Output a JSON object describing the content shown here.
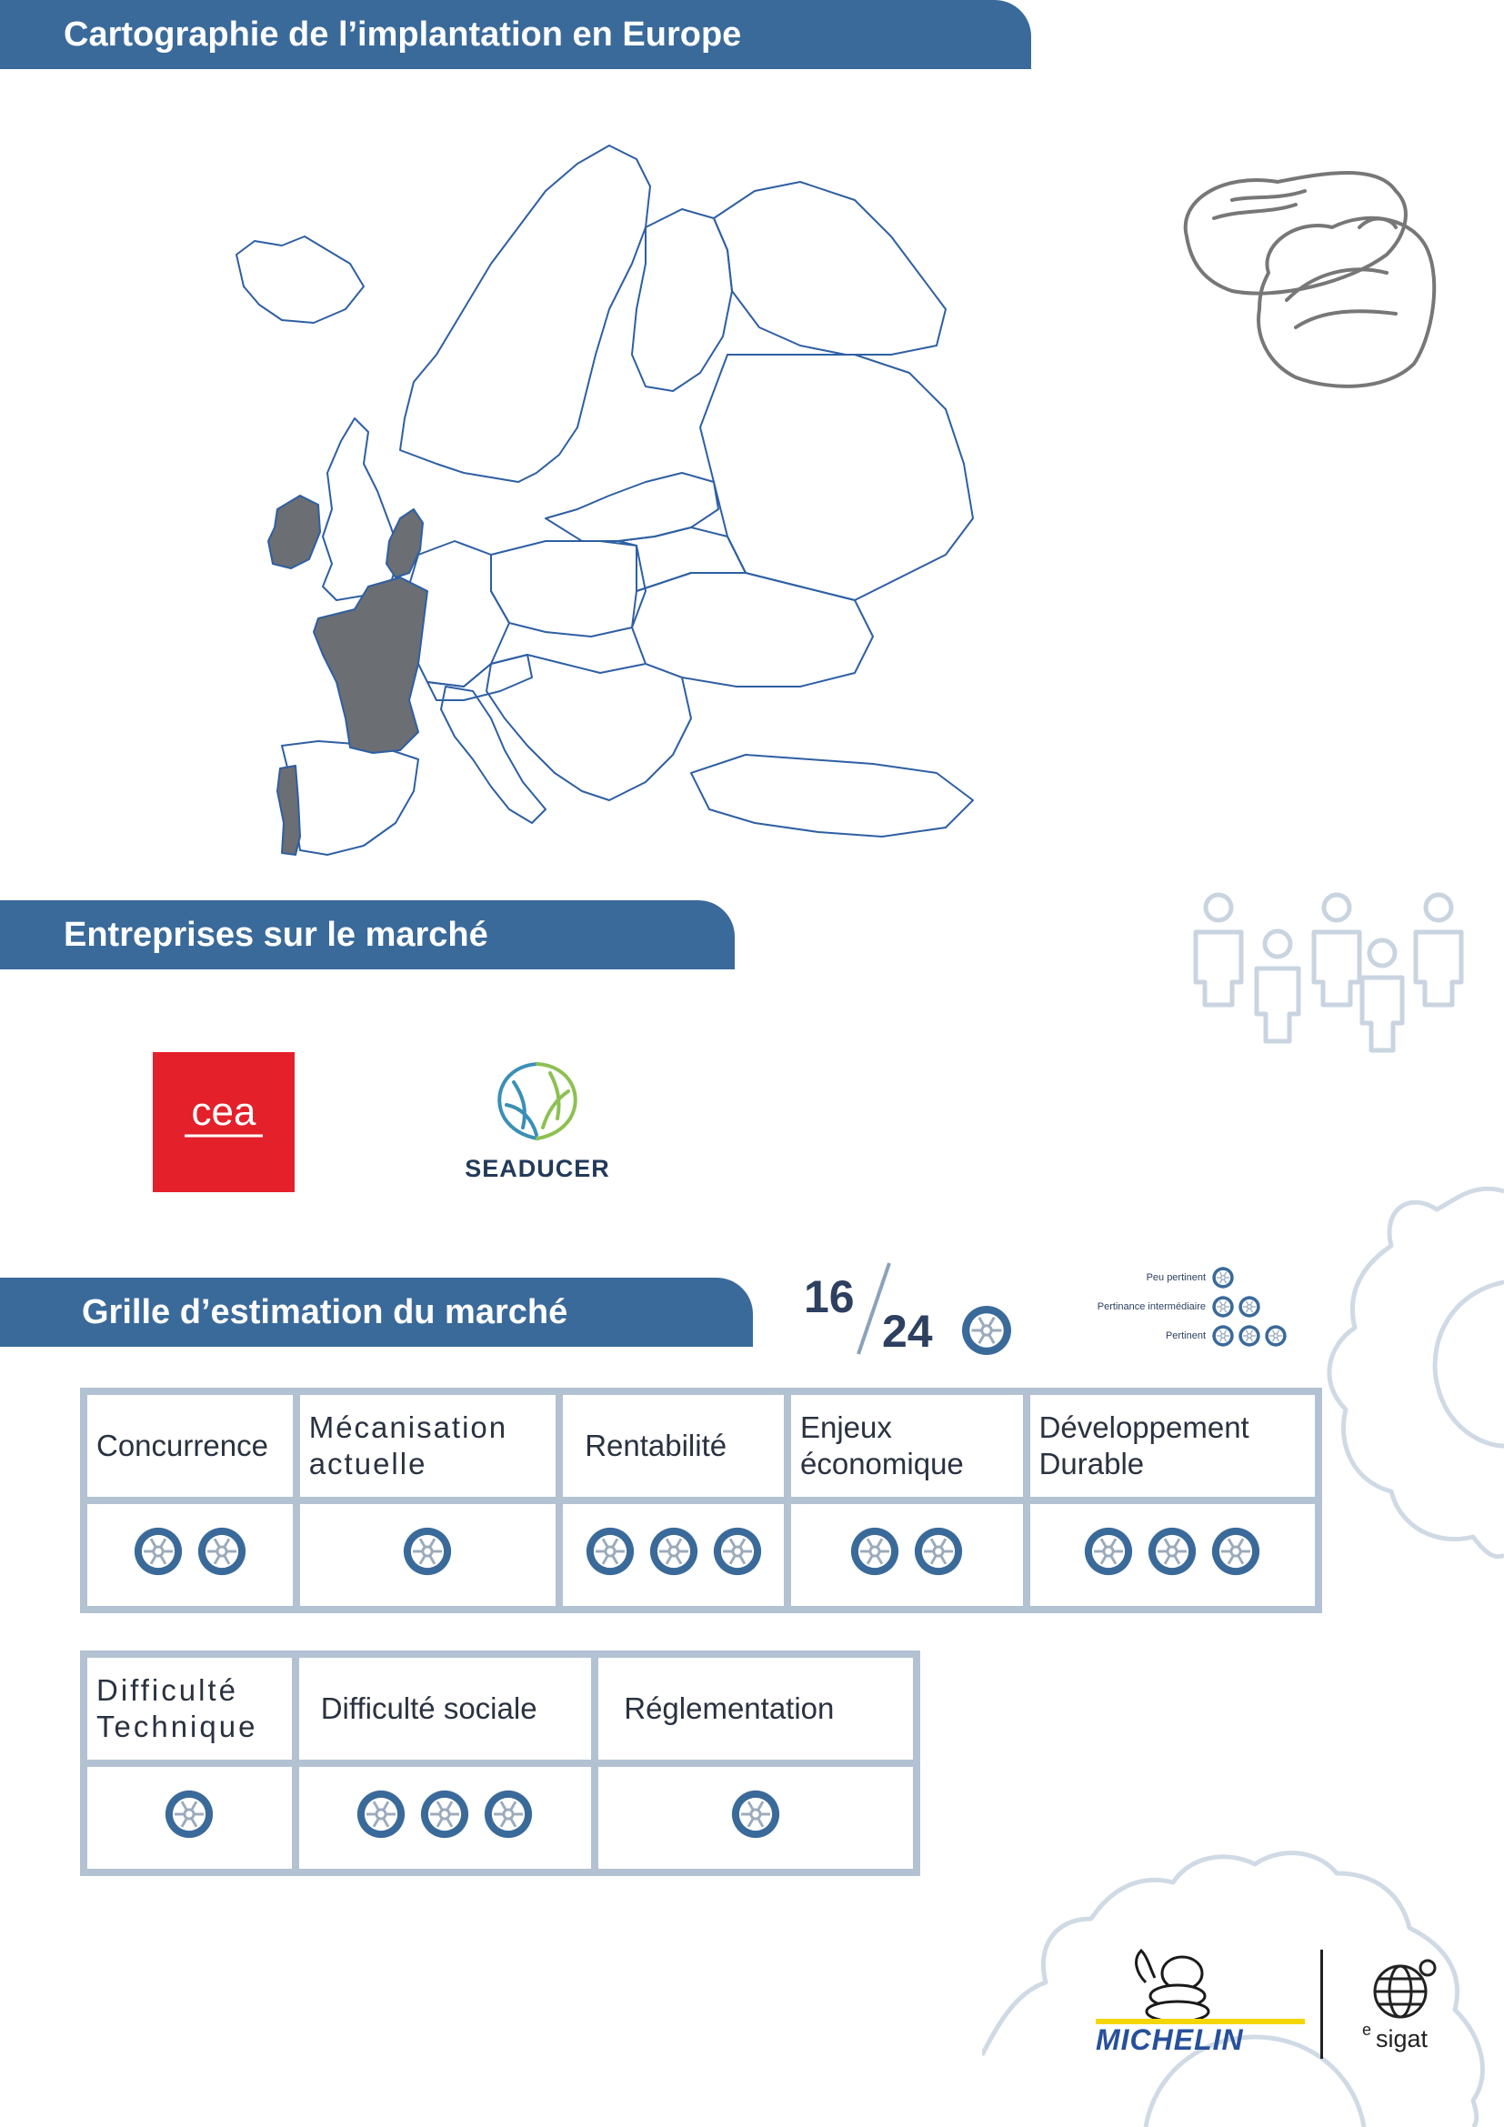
{
  "sections": {
    "carto_title": "Cartographie de l’implantation en Europe",
    "entreprises_title": "Entreprises sur le marché",
    "grille_title": "Grille d’estimation du marché"
  },
  "map": {
    "highlighted_countries": [
      "Ireland",
      "Netherlands",
      "France",
      "Portugal"
    ],
    "highlight_color": "#6b6e72",
    "border_color": "#2e5fa3"
  },
  "companies": {
    "cea_logo_text": "cea",
    "seaducer_name": "SEADUCER"
  },
  "score": {
    "value": "16",
    "total": "24",
    "icon": "wheel-icon"
  },
  "legend": [
    {
      "label": "Peu pertinent",
      "wheels": 1
    },
    {
      "label": "Pertinance intermédiaire",
      "wheels": 2
    },
    {
      "label": "Pertinent",
      "wheels": 3
    }
  ],
  "grid1": [
    {
      "label": "Concurrence",
      "wheels": 2
    },
    {
      "label": "Mécanisation actuelle",
      "wheels": 1
    },
    {
      "label": "Rentabilité",
      "wheels": 3
    },
    {
      "label": "Enjeux économique",
      "wheels": 2
    },
    {
      "label": "Développement Durable",
      "wheels": 3
    }
  ],
  "grid2": [
    {
      "label": "Difficulté Technique",
      "wheels": 1
    },
    {
      "label": "Difficulté sociale",
      "wheels": 3
    },
    {
      "label": "Réglementation",
      "wheels": 1
    }
  ],
  "footer": {
    "michelin": "MICHELIN",
    "sigat": "sigat",
    "sigat_prefix": "e"
  },
  "colors": {
    "banner": "#3a6a9a",
    "wheel": "#3a6a9a",
    "grid_border": "#b3c2d2",
    "cea_red": "#e4202b"
  }
}
